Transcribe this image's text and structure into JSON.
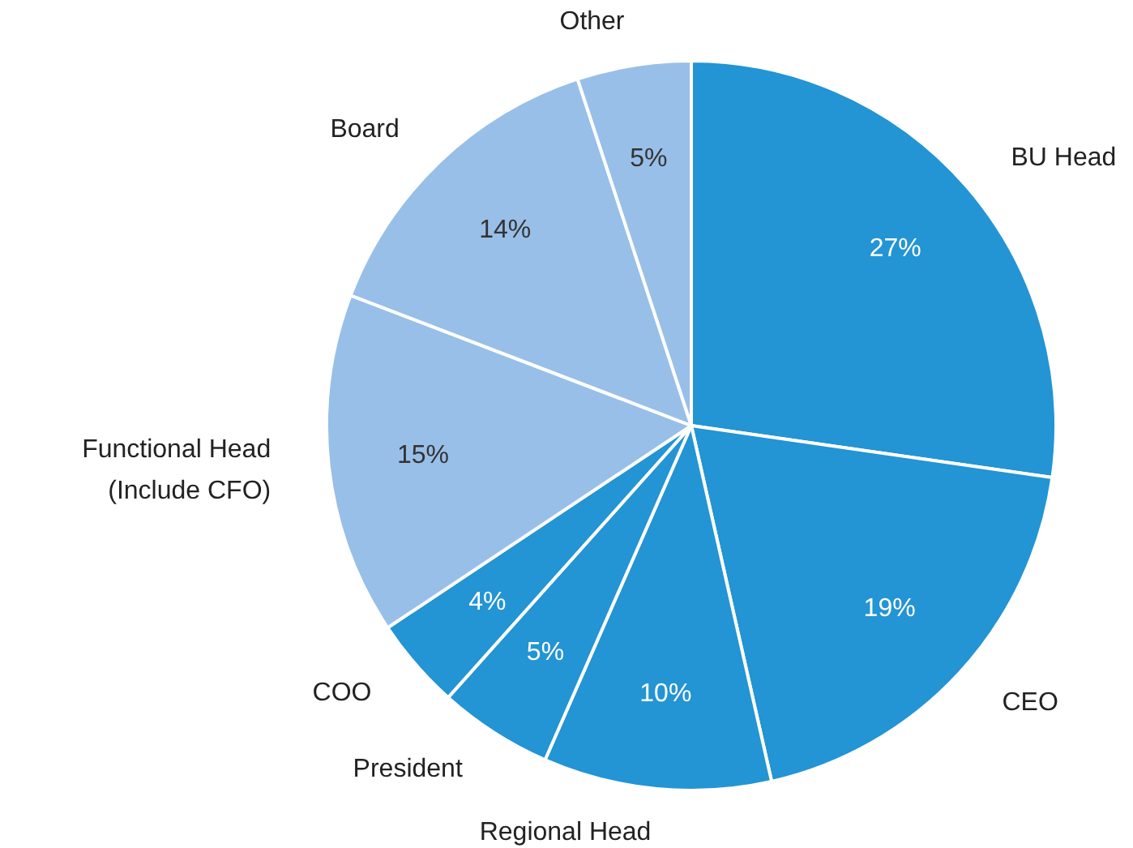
{
  "chart_data": {
    "type": "pie",
    "categories": [
      "BU Head",
      "CEO",
      "Regional Head",
      "President",
      "COO",
      "Functional Head\n(Include CFO)",
      "Board",
      "Other"
    ],
    "values": [
      27,
      19,
      10,
      5,
      4,
      15,
      14,
      5
    ],
    "value_labels": [
      "27%",
      "19%",
      "10%",
      "5%",
      "4%",
      "15%",
      "14%",
      "5%"
    ],
    "colors": [
      "#2394d4",
      "#2394d4",
      "#2394d4",
      "#2394d4",
      "#2394d4",
      "#98bfe8",
      "#98bfe8",
      "#98bfe8"
    ]
  }
}
